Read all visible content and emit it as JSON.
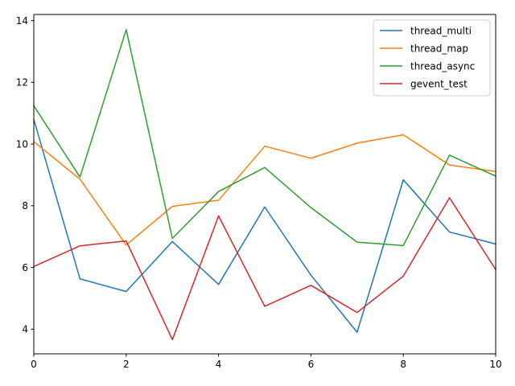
{
  "chart_data": {
    "type": "line",
    "title": "",
    "xlabel": "",
    "ylabel": "",
    "xlim": [
      0,
      10
    ],
    "ylim": [
      3.2,
      14.2
    ],
    "xticks": [
      0,
      2,
      4,
      6,
      8,
      10
    ],
    "yticks": [
      4,
      6,
      8,
      10,
      12,
      14
    ],
    "grid": false,
    "legend_position": "top-right",
    "x": [
      0,
      1,
      2,
      3,
      4,
      5,
      6,
      7,
      8,
      9,
      10
    ],
    "series": [
      {
        "name": "thread_multi",
        "color": "#1f77b4",
        "values": [
          10.8,
          5.63,
          5.22,
          6.84,
          5.45,
          7.96,
          5.75,
          3.9,
          8.84,
          7.15,
          6.76
        ]
      },
      {
        "name": "thread_map",
        "color": "#ff7f0e",
        "values": [
          10.08,
          8.86,
          6.73,
          7.98,
          8.18,
          9.93,
          9.54,
          10.03,
          10.3,
          9.32,
          9.11
        ]
      },
      {
        "name": "thread_async",
        "color": "#2ca02c",
        "values": [
          11.24,
          8.93,
          13.71,
          6.94,
          8.46,
          9.24,
          7.94,
          6.82,
          6.71,
          9.64,
          8.96
        ]
      },
      {
        "name": "gevent_test",
        "color": "#d62728",
        "values": [
          6.03,
          6.7,
          6.86,
          3.66,
          7.67,
          4.74,
          5.42,
          4.54,
          5.72,
          8.26,
          5.93
        ]
      }
    ]
  }
}
